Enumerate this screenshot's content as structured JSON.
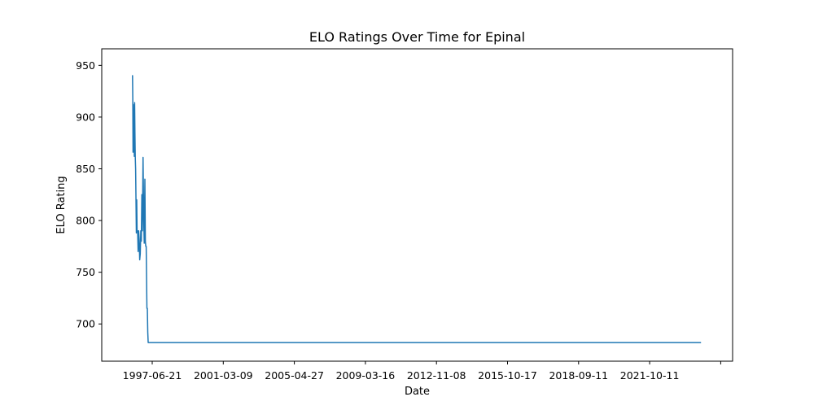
{
  "chart_data": {
    "type": "line",
    "title": "ELO Ratings Over Time for Epinal",
    "xlabel": "Date",
    "ylabel": "ELO Rating",
    "x_ticks": [
      "1997-06-21",
      "2001-03-09",
      "2005-04-27",
      "2009-03-16",
      "2012-11-08",
      "2015-10-17",
      "2018-09-11",
      "2021-10-11",
      ""
    ],
    "y_ticks": [
      700,
      750,
      800,
      850,
      900,
      950
    ],
    "ylim": [
      664,
      966
    ],
    "grid": false,
    "line_color": "#1f77b4",
    "series": [
      {
        "x": [
          "1996-06-01",
          "1996-06-10",
          "1996-06-15",
          "1996-06-20",
          "1996-06-25",
          "1996-07-02",
          "1996-07-08",
          "1996-07-14",
          "1996-07-20",
          "1996-07-26",
          "1996-08-01",
          "1996-08-08",
          "1996-08-15",
          "1996-08-22",
          "1996-08-29",
          "1996-09-05",
          "1996-09-15",
          "1996-09-25",
          "1996-10-05",
          "1996-10-15",
          "1996-10-25",
          "1996-11-05",
          "1996-11-15",
          "1996-11-25",
          "1996-12-05",
          "1996-12-15",
          "1996-12-28",
          "1997-01-10",
          "1997-01-20",
          "1997-02-01",
          "1997-02-10",
          "1997-02-18",
          "1997-02-26",
          "1997-03-05",
          "1997-03-12",
          "1997-03-20",
          "1997-03-28",
          "1997-04-05",
          "1997-04-15",
          "1997-04-25",
          "1997-05-05",
          "1997-05-15",
          "1997-05-25",
          "1997-06-04",
          "1997-06-14",
          "1997-06-24",
          "1997-07-04",
          "1997-07-14",
          "2026-03-01"
        ],
        "y": [
          940,
          940,
          918,
          866,
          912,
          872,
          905,
          862,
          914,
          885,
          862,
          850,
          820,
          788,
          820,
          790,
          790,
          770,
          790,
          782,
          762,
          768,
          790,
          780,
          825,
          790,
          861,
          800,
          778,
          840,
          780,
          775,
          775,
          745,
          715,
          715,
          692,
          682,
          682,
          682,
          682,
          682,
          682,
          682,
          682,
          682,
          682,
          682,
          682
        ]
      }
    ]
  }
}
